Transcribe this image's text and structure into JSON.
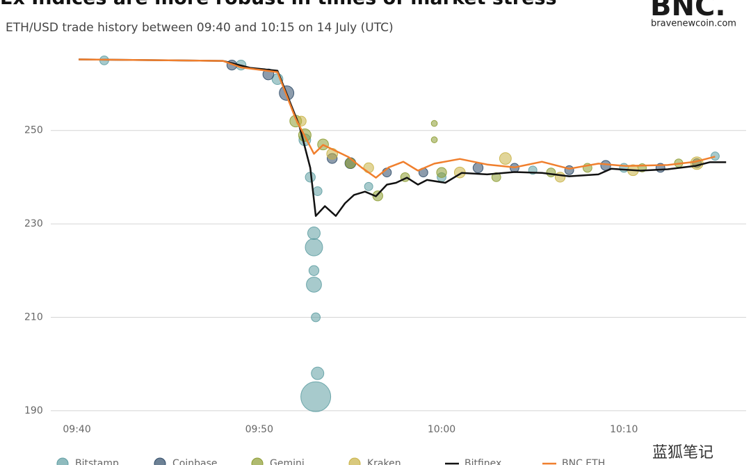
{
  "chart_data": {
    "type": "scatter",
    "title": "Ex Indices are more robust in times of market stress",
    "subtitle": "ETH/USD trade history between 09:40 and 10:15 on 14 July (UTC)",
    "logo": "BNC.",
    "logo_site": "bravenewcoin.com",
    "watermark": "蓝狐笔记",
    "xlim": [
      -2.5,
      36.7
    ],
    "xticks": [
      {
        "value": 0,
        "label": "09:40"
      },
      {
        "value": 10,
        "label": "09:50"
      },
      {
        "value": 20,
        "label": "10:00"
      },
      {
        "value": 30,
        "label": "10:10"
      }
    ],
    "ylim": [
      188.5,
      269
    ],
    "yticks": [
      190,
      210,
      230,
      250
    ],
    "grid": true,
    "legend": "bottom",
    "series": [
      {
        "name": "Bitstamp",
        "type": "bubble",
        "color": "#5f9ea3",
        "x": [
          1.5,
          9,
          11,
          12.5,
          12.8,
          13,
          13,
          13,
          13,
          13.1,
          13.1,
          13.2,
          13.2,
          16,
          20,
          25,
          30,
          35
        ],
        "values": [
          265,
          264,
          261,
          248,
          240,
          228,
          225,
          220,
          217,
          210,
          193,
          237,
          198,
          238,
          240,
          241.5,
          242,
          244.5
        ],
        "sizes": [
          6,
          8,
          10,
          12,
          8,
          14,
          30,
          8,
          22,
          6,
          100,
          6,
          14,
          5,
          6,
          5,
          6,
          5
        ]
      },
      {
        "name": "Coinbase",
        "type": "bubble",
        "color": "#2f4b68",
        "x": [
          8.5,
          10.5,
          11.5,
          14,
          15,
          17,
          19,
          22,
          24,
          27,
          29,
          32,
          34
        ],
        "values": [
          264,
          262,
          258,
          244,
          243,
          241,
          241,
          242,
          242,
          241.5,
          242.5,
          242,
          243
        ],
        "sizes": [
          8,
          10,
          20,
          8,
          10,
          6,
          6,
          8,
          6,
          6,
          8,
          6,
          6
        ]
      },
      {
        "name": "Gemini",
        "type": "bubble",
        "color": "#8d9c32",
        "x": [
          12,
          12.5,
          13.5,
          15,
          16.5,
          18,
          19.6,
          19.6,
          20,
          23,
          26,
          28,
          31,
          33
        ],
        "values": [
          252,
          249,
          247,
          243,
          236,
          240,
          251.5,
          248,
          241,
          240,
          241,
          242,
          242,
          243
        ],
        "sizes": [
          12,
          14,
          10,
          8,
          8,
          6,
          2,
          2,
          8,
          6,
          6,
          6,
          5,
          5
        ]
      },
      {
        "name": "Kraken",
        "type": "bubble",
        "color": "#c9b246",
        "x": [
          12.3,
          14,
          16,
          21,
          23.5,
          26.5,
          30.5,
          34
        ],
        "values": [
          252,
          245,
          242,
          241,
          244,
          240,
          241.5,
          243
        ],
        "sizes": [
          8,
          10,
          8,
          10,
          12,
          8,
          10,
          14
        ]
      },
      {
        "name": "Bitfinex",
        "type": "line",
        "color": "#111111",
        "x": [
          0.1,
          8,
          9.5,
          11,
          12.2,
          12.8,
          13.1,
          13.6,
          14.2,
          14.7,
          15.2,
          15.8,
          16.4,
          17,
          17.5,
          18.1,
          18.7,
          19.2,
          20.2,
          21.1,
          22.5,
          24,
          25.5,
          27,
          28.6,
          29.3,
          30.9,
          32.4,
          33.9,
          34.7,
          35.6
        ],
        "values": [
          265.2,
          264.9,
          263.4,
          262.8,
          251,
          242,
          231.7,
          233.8,
          231.7,
          234.4,
          236.2,
          236.9,
          235.9,
          238.4,
          238.8,
          239.9,
          238.4,
          239.4,
          238.8,
          240.9,
          240.6,
          241.1,
          240.9,
          240.2,
          240.6,
          241.8,
          241.4,
          241.7,
          242.4,
          243.2,
          243.2
        ]
      },
      {
        "name": "BNC ETH",
        "type": "line",
        "color": "#f07f2d",
        "x": [
          0.1,
          8,
          9,
          11,
          11.4,
          12,
          12.6,
          13,
          13.5,
          14.1,
          14.9,
          15.6,
          16.4,
          17.1,
          17.9,
          18.7,
          19.6,
          21,
          22.5,
          24,
          25.5,
          27,
          28.6,
          30.1,
          32.4,
          33.9,
          35
        ],
        "values": [
          265.2,
          264.9,
          263.5,
          262.5,
          258.5,
          252.5,
          248,
          245,
          246.9,
          245.8,
          244.3,
          242.1,
          239.9,
          242.1,
          243.3,
          241.4,
          242.9,
          243.9,
          242.7,
          242.1,
          243.3,
          241.8,
          242.9,
          242.4,
          242.6,
          243.3,
          244.4
        ]
      }
    ]
  }
}
